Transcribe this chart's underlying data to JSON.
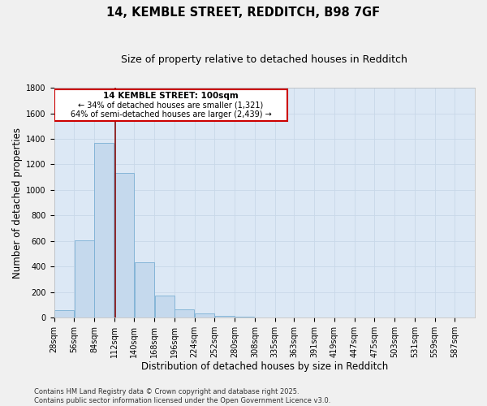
{
  "title_line1": "14, KEMBLE STREET, REDDITCH, B98 7GF",
  "title_line2": "Size of property relative to detached houses in Redditch",
  "xlabel": "Distribution of detached houses by size in Redditch",
  "ylabel": "Number of detached properties",
  "bar_values": [
    55,
    605,
    1365,
    1130,
    430,
    170,
    65,
    35,
    15,
    5,
    2,
    1,
    0,
    0,
    0,
    0,
    0,
    0,
    0,
    0,
    0
  ],
  "bin_labels": [
    "28sqm",
    "56sqm",
    "84sqm",
    "112sqm",
    "140sqm",
    "168sqm",
    "196sqm",
    "224sqm",
    "252sqm",
    "280sqm",
    "308sqm",
    "335sqm",
    "363sqm",
    "391sqm",
    "419sqm",
    "447sqm",
    "475sqm",
    "503sqm",
    "531sqm",
    "559sqm",
    "587sqm"
  ],
  "bin_edges": [
    14,
    42,
    70,
    98,
    126,
    154,
    182,
    210,
    238,
    266,
    294,
    322,
    349,
    377,
    405,
    433,
    461,
    489,
    517,
    545,
    573,
    601
  ],
  "bar_color": "#c5d9ed",
  "bar_edgecolor": "#7aafd4",
  "property_line_x": 100,
  "property_line_color": "#8b1a1a",
  "annotation_title": "14 KEMBLE STREET: 100sqm",
  "annotation_line1": "← 34% of detached houses are smaller (1,321)",
  "annotation_line2": "64% of semi-detached houses are larger (2,439) →",
  "annotation_box_facecolor": "#ffffff",
  "annotation_box_edgecolor": "#cc0000",
  "ylim": [
    0,
    1800
  ],
  "yticks": [
    0,
    200,
    400,
    600,
    800,
    1000,
    1200,
    1400,
    1600,
    1800
  ],
  "grid_color": "#c8d8e8",
  "background_color": "#dce8f5",
  "fig_facecolor": "#f0f0f0",
  "footer_line1": "Contains HM Land Registry data © Crown copyright and database right 2025.",
  "footer_line2": "Contains public sector information licensed under the Open Government Licence v3.0.",
  "title_fontsize": 10.5,
  "subtitle_fontsize": 9,
  "axis_label_fontsize": 8.5,
  "tick_fontsize": 7,
  "annotation_title_fontsize": 7.5,
  "annotation_text_fontsize": 7,
  "footer_fontsize": 6
}
